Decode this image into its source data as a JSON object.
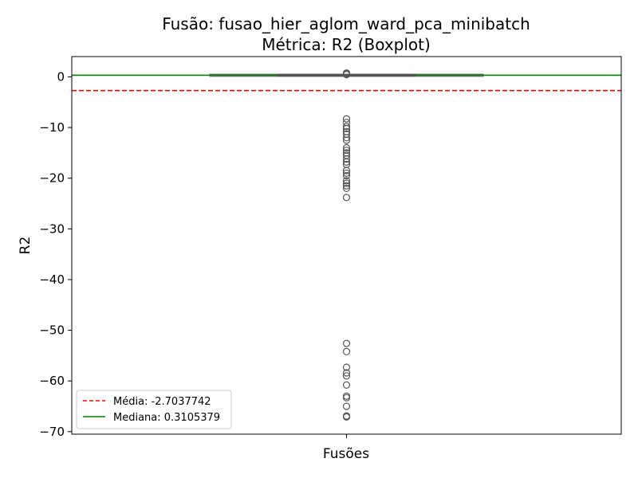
{
  "chart_data": {
    "type": "boxplot",
    "title": "Fusão: fusao_hier_aglom_ward_pca_minibatch",
    "subtitle": "Métrica: R2 (Boxplot)",
    "xlabel": "Fusões",
    "ylabel": "R2",
    "ylim": [
      -70.5,
      4
    ],
    "yticks": [
      0,
      -10,
      -20,
      -30,
      -40,
      -50,
      -60,
      -70
    ],
    "ytick_labels": [
      "0",
      "−10",
      "−20",
      "−30",
      "−40",
      "−50",
      "−60",
      "−70"
    ],
    "grid": false,
    "box": {
      "category": "",
      "q1": 0.15,
      "median": 0.31,
      "q3": 0.47,
      "whisker_low": 0.1,
      "whisker_high": 0.52,
      "outliers": [
        0.75,
        0.6,
        0.45,
        -8.3,
        -9.0,
        -9.8,
        -10.2,
        -10.8,
        -11.3,
        -12.0,
        -12.5,
        -14.0,
        -14.5,
        -15.0,
        -15.5,
        -16.2,
        -16.8,
        -17.3,
        -18.5,
        -19.0,
        -19.5,
        -20.5,
        -21.0,
        -21.5,
        -22.0,
        -23.8,
        -52.6,
        -54.2,
        -57.3,
        -58.4,
        -59.0,
        -60.8,
        -63.0,
        -63.3,
        -65.0,
        -66.9,
        -67.1
      ]
    },
    "reference_lines": [
      {
        "label": "Média: -2.7037742",
        "value": -2.7037742,
        "color": "#ff0000",
        "style": "dashed"
      },
      {
        "label": "Mediana: 0.3105379",
        "value": 0.3105379,
        "color": "#008000",
        "style": "solid"
      }
    ],
    "legend_position": "lower-left",
    "colors": {
      "box_edge": "#555555",
      "box_fill": "#4c72b0",
      "outlier_edge": "#555555"
    }
  }
}
